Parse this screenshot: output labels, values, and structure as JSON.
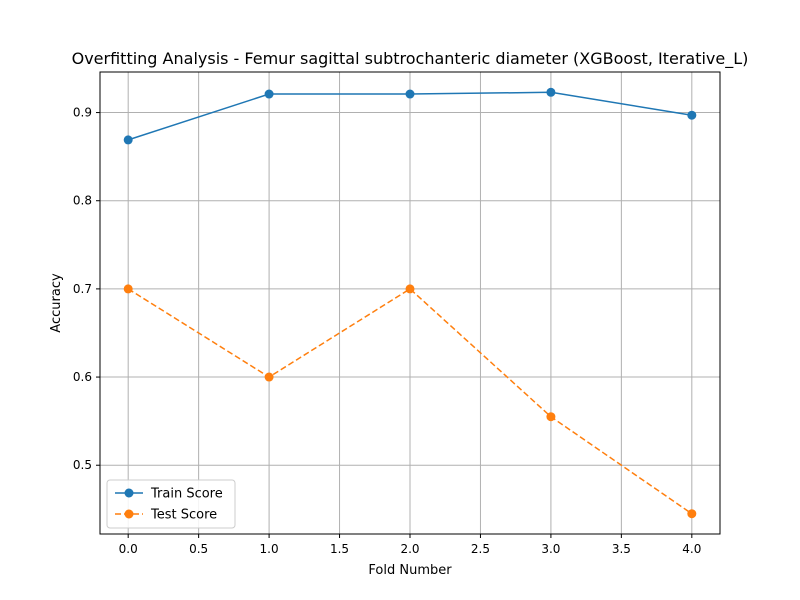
{
  "chart_data": {
    "type": "line",
    "title": "Overfitting Analysis - Femur sagittal subtrochanteric diameter (XGBoost, Iterative_L)",
    "xlabel": "Fold Number",
    "ylabel": "Accuracy",
    "x": [
      0,
      1,
      2,
      3,
      4
    ],
    "xlim": [
      -0.2,
      4.2
    ],
    "ylim": [
      0.422,
      0.946
    ],
    "xticks": [
      0.0,
      0.5,
      1.0,
      1.5,
      2.0,
      2.5,
      3.0,
      3.5,
      4.0
    ],
    "xtick_labels": [
      "0.0",
      "0.5",
      "1.0",
      "1.5",
      "2.0",
      "2.5",
      "3.0",
      "3.5",
      "4.0"
    ],
    "yticks": [
      0.5,
      0.6,
      0.7,
      0.8,
      0.9
    ],
    "ytick_labels": [
      "0.5",
      "0.6",
      "0.7",
      "0.8",
      "0.9"
    ],
    "grid": true,
    "legend_position": "lower-left",
    "series": [
      {
        "name": "Train Score",
        "values": [
          0.869,
          0.921,
          0.921,
          0.923,
          0.897
        ],
        "color": "#1f77b4",
        "linestyle": "solid",
        "marker": "circle"
      },
      {
        "name": "Test Score",
        "values": [
          0.7,
          0.6,
          0.7,
          0.555,
          0.445
        ],
        "color": "#ff7f0e",
        "linestyle": "dashed",
        "marker": "circle"
      }
    ]
  }
}
